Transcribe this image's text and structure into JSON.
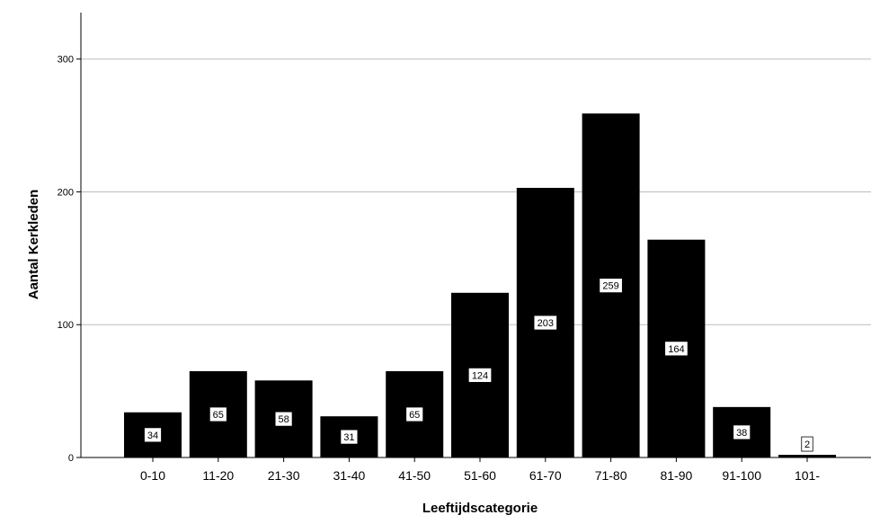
{
  "chart_data": {
    "type": "bar",
    "title": "",
    "xlabel": "Leeftijdscategorie",
    "ylabel": "Aantal Kerkleden",
    "categories": [
      "0-10",
      "11-20",
      "21-30",
      "31-40",
      "41-50",
      "51-60",
      "61-70",
      "71-80",
      "81-90",
      "91-100",
      "101-"
    ],
    "values": [
      34,
      65,
      58,
      31,
      65,
      124,
      203,
      259,
      164,
      38,
      2
    ],
    "ylim": [
      0,
      335
    ],
    "yticks": [
      0,
      100,
      200,
      300
    ],
    "grid": true,
    "legend": "none",
    "bar_color": "#000000",
    "grid_color": "#bdbdbd"
  }
}
